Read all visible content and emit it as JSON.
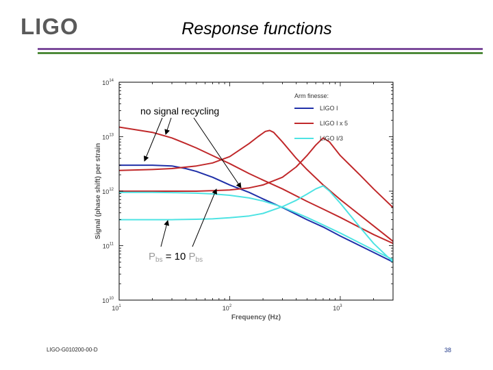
{
  "header": {
    "logo": "LIGO",
    "title": "Response functions"
  },
  "footer": {
    "doc_id": "LIGO-G010200-00-D",
    "page": "38"
  },
  "annotations": {
    "no_recycling": "no signal recycling",
    "pbs_p1": "P",
    "pbs_s1": "bs",
    "pbs_eq": " = 10 ",
    "pbs_p2": "P",
    "pbs_s2": "bs"
  },
  "chart_data": {
    "type": "line",
    "title": "",
    "xlabel": "Frequency (Hz)",
    "ylabel": "Signal (phase shift) per strain",
    "xscale": "log",
    "yscale": "log",
    "xlim": [
      10,
      3000
    ],
    "ylim": [
      10000000000.0,
      100000000000000.0
    ],
    "x_ticks": [
      {
        "value": 10,
        "base": "10",
        "exp": "1"
      },
      {
        "value": 100,
        "base": "10",
        "exp": "2"
      },
      {
        "value": 1000,
        "base": "10",
        "exp": "3"
      }
    ],
    "y_ticks": [
      {
        "value": 10000000000.0,
        "base": "10",
        "exp": "10"
      },
      {
        "value": 100000000000.0,
        "base": "10",
        "exp": "11"
      },
      {
        "value": 1000000000000.0,
        "base": "10",
        "exp": "12"
      },
      {
        "value": 10000000000000.0,
        "base": "10",
        "exp": "13"
      },
      {
        "value": 100000000000000.0,
        "base": "10",
        "exp": "14"
      }
    ],
    "legend": {
      "title": "Arm finesse:",
      "placement": "top-right",
      "entries": [
        {
          "label": "LIGO I",
          "color": "#1f2fa8"
        },
        {
          "label": "LIGO I x 5",
          "color": "#c0282a"
        },
        {
          "label": "LIGO I/3",
          "color": "#4de3e3"
        }
      ]
    },
    "series": [
      {
        "name": "LIGO I (no signal recycling)",
        "color": "#1f2fa8",
        "x": [
          10,
          20,
          30,
          40,
          50,
          70,
          100,
          150,
          200,
          300,
          500,
          700,
          1000,
          2000,
          3000
        ],
        "y": [
          3000000000000.0,
          3000000000000.0,
          2900000000000.0,
          2600000000000.0,
          2300000000000.0,
          1800000000000.0,
          1300000000000.0,
          950000000000.0,
          720000000000.0,
          500000000000.0,
          300000000000.0,
          220000000000.0,
          150000000000.0,
          75000000000.0,
          50000000000.0
        ]
      },
      {
        "name": "LIGO I x 5 (no signal recycling)",
        "color": "#c0282a",
        "x": [
          10,
          20,
          30,
          40,
          50,
          70,
          100,
          150,
          200,
          300,
          500,
          700,
          1000,
          2000,
          3000
        ],
        "y": [
          15000000000000.0,
          12000000000000.0,
          9500000000000.0,
          7500000000000.0,
          6200000000000.0,
          4500000000000.0,
          3200000000000.0,
          2100000000000.0,
          1600000000000.0,
          1100000000000.0,
          650000000000.0,
          470000000000.0,
          330000000000.0,
          160000000000.0,
          110000000000.0
        ]
      },
      {
        "name": "LIGO I x 5 (detuned, resonance near 230 Hz)",
        "color": "#c0282a",
        "x": [
          10,
          20,
          30,
          50,
          70,
          100,
          150,
          180,
          210,
          230,
          250,
          300,
          400,
          500,
          700,
          1000,
          2000,
          3000
        ],
        "y": [
          2400000000000.0,
          2500000000000.0,
          2600000000000.0,
          2900000000000.0,
          3300000000000.0,
          4300000000000.0,
          7500000000000.0,
          10000000000000.0,
          12500000000000.0,
          13000000000000.0,
          12000000000000.0,
          8000000000000.0,
          4000000000000.0,
          2500000000000.0,
          1300000000000.0,
          700000000000.0,
          230000000000.0,
          120000000000.0
        ]
      },
      {
        "name": "LIGO I x 5 (detuned, resonance near 700 Hz)",
        "color": "#c0282a",
        "x": [
          10,
          20,
          30,
          50,
          70,
          100,
          150,
          200,
          300,
          400,
          500,
          600,
          700,
          800,
          1000,
          1500,
          2000,
          3000
        ],
        "y": [
          1000000000000.0,
          1000000000000.0,
          1000000000000.0,
          1000000000000.0,
          1020000000000.0,
          1050000000000.0,
          1150000000000.0,
          1300000000000.0,
          1800000000000.0,
          2800000000000.0,
          4500000000000.0,
          7000000000000.0,
          9500000000000.0,
          8000000000000.0,
          4500000000000.0,
          2000000000000.0,
          1100000000000.0,
          500000000000.0
        ]
      },
      {
        "name": "LIGO I/3 (no signal recycling)",
        "color": "#4de3e3",
        "x": [
          10,
          20,
          30,
          50,
          70,
          100,
          150,
          200,
          300,
          500,
          700,
          1000,
          2000,
          3000
        ],
        "y": [
          950000000000.0,
          950000000000.0,
          940000000000.0,
          920000000000.0,
          890000000000.0,
          840000000000.0,
          750000000000.0,
          660000000000.0,
          510000000000.0,
          330000000000.0,
          240000000000.0,
          170000000000.0,
          83000000000.0,
          55000000000.0
        ]
      },
      {
        "name": "LIGO I/3 (detuned, resonance near 700 Hz)",
        "color": "#4de3e3",
        "x": [
          10,
          20,
          30,
          50,
          70,
          100,
          150,
          200,
          300,
          400,
          500,
          600,
          700,
          800,
          1000,
          1500,
          2000,
          3000
        ],
        "y": [
          300000000000.0,
          300000000000.0,
          300000000000.0,
          305000000000.0,
          310000000000.0,
          325000000000.0,
          350000000000.0,
          390000000000.0,
          520000000000.0,
          680000000000.0,
          880000000000.0,
          1100000000000.0,
          1250000000000.0,
          1000000000000.0,
          600000000000.0,
          220000000000.0,
          110000000000.0,
          50000000000.0
        ]
      }
    ]
  }
}
